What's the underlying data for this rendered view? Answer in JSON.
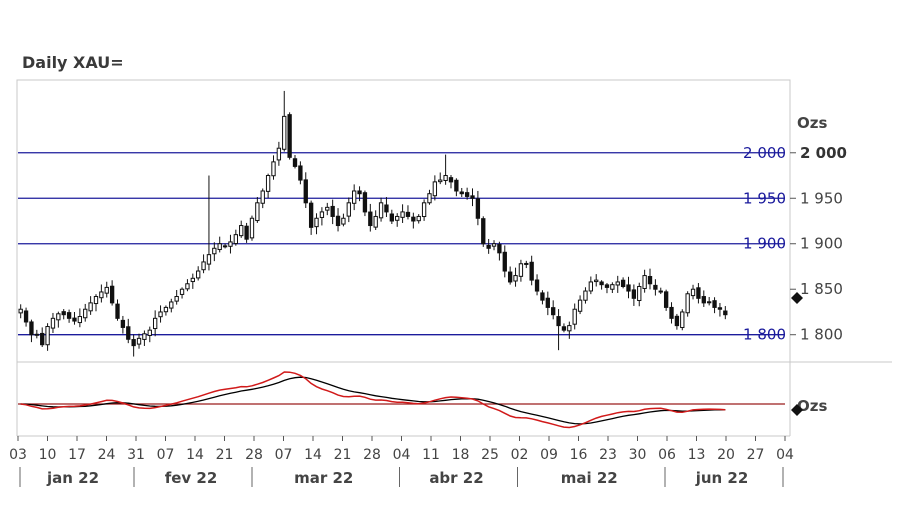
{
  "chart_data": {
    "type": "candlestick",
    "title": "Daily XAU=",
    "y_unit": "Ozs",
    "lower_unit": "Ozs",
    "ylim": [
      1770,
      2080
    ],
    "y_ticks": [
      {
        "value": 2000,
        "label": "2 000",
        "bold": true
      },
      {
        "value": 1950,
        "label": "1 950"
      },
      {
        "value": 1900,
        "label": "1 900"
      },
      {
        "value": 1850,
        "label": "1 850"
      },
      {
        "value": 1800,
        "label": "1 800"
      }
    ],
    "levels": [
      {
        "value": 2000,
        "label": "2 000"
      },
      {
        "value": 1950,
        "label": "1 950"
      },
      {
        "value": 1900,
        "label": "1 900"
      },
      {
        "value": 1800,
        "label": "1 800"
      }
    ],
    "x_ticks": [
      "03",
      "10",
      "17",
      "24",
      "31",
      "07",
      "14",
      "21",
      "28",
      "07",
      "14",
      "21",
      "28",
      "04",
      "11",
      "18",
      "25",
      "02",
      "09",
      "16",
      "23",
      "30",
      "06",
      "13",
      "20",
      "27",
      "04"
    ],
    "months": [
      "jan 22",
      "fev 22",
      "mar 22",
      "abr 22",
      "mai 22",
      "jun 22"
    ],
    "closes": [
      1828,
      1814,
      1800,
      1800,
      1789,
      1809,
      1818,
      1823,
      1822,
      1818,
      1815,
      1820,
      1828,
      1835,
      1842,
      1847,
      1852,
      1835,
      1818,
      1808,
      1795,
      1788,
      1796,
      1801,
      1805,
      1818,
      1825,
      1830,
      1836,
      1842,
      1850,
      1856,
      1862,
      1870,
      1880,
      1888,
      1895,
      1900,
      1897,
      1902,
      1910,
      1920,
      1905,
      1928,
      1945,
      1958,
      1975,
      1990,
      2005,
      2040,
      1995,
      1985,
      1970,
      1945,
      1918,
      1928,
      1935,
      1940,
      1930,
      1920,
      1928,
      1945,
      1958,
      1955,
      1935,
      1920,
      1930,
      1945,
      1935,
      1925,
      1930,
      1935,
      1930,
      1925,
      1930,
      1945,
      1955,
      1968,
      1970,
      1975,
      1968,
      1958,
      1955,
      1952,
      1950,
      1928,
      1900,
      1895,
      1900,
      1890,
      1870,
      1858,
      1865,
      1878,
      1878,
      1860,
      1848,
      1838,
      1830,
      1822,
      1810,
      1805,
      1810,
      1828,
      1838,
      1848,
      1858,
      1860,
      1855,
      1852,
      1855,
      1858,
      1853,
      1848,
      1840,
      1853,
      1865,
      1856,
      1850,
      1848,
      1830,
      1818,
      1810,
      1825,
      1845,
      1850,
      1840,
      1835,
      1836,
      1830,
      1828,
      1822
    ],
    "indicator": {
      "series": [
        {
          "color": "#000000"
        },
        {
          "color": "#d11a1a"
        }
      ],
      "reference_line": {
        "color": "#9b1c1c"
      }
    }
  }
}
